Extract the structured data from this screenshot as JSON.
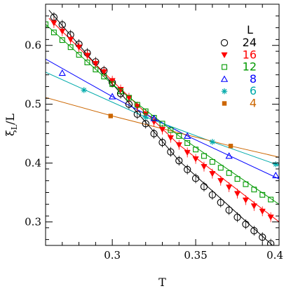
{
  "chart_data": {
    "type": "line",
    "title": "",
    "xlabel": "T",
    "ylabel": "ξL/L",
    "ylabel_main": "ξ",
    "ylabel_sub": "L",
    "ylabel_tail": "/L",
    "xlim": [
      0.26,
      0.4
    ],
    "ylim": [
      0.26,
      0.67
    ],
    "x_ticks": [
      0.3,
      0.35,
      0.4
    ],
    "x_tick_labels": [
      "0.3",
      "0.35",
      "0.4"
    ],
    "y_ticks": [
      0.3,
      0.4,
      0.5,
      0.6
    ],
    "y_tick_labels": [
      "0.3",
      "0.4",
      "0.5",
      "0.6"
    ],
    "grid": false,
    "legend": {
      "title": "L",
      "placement": "top-right"
    },
    "series": [
      {
        "name": "24",
        "color": "#000000",
        "marker": "circle",
        "x": [
          0.265,
          0.27,
          0.275,
          0.28,
          0.285,
          0.29,
          0.295,
          0.3,
          0.305,
          0.31,
          0.315,
          0.32,
          0.325,
          0.33,
          0.335,
          0.34,
          0.345,
          0.35,
          0.355,
          0.36,
          0.365,
          0.37,
          0.375,
          0.38,
          0.385,
          0.39,
          0.395
        ],
        "y": [
          0.648,
          0.635,
          0.618,
          0.602,
          0.587,
          0.572,
          0.557,
          0.537,
          0.518,
          0.5,
          0.483,
          0.467,
          0.45,
          0.435,
          0.419,
          0.404,
          0.389,
          0.374,
          0.36,
          0.346,
          0.333,
          0.32,
          0.308,
          0.296,
          0.285,
          0.274,
          0.263
        ],
        "fit": [
          [
            0.262,
            0.66
          ],
          [
            0.3,
            0.535
          ],
          [
            0.34,
            0.404
          ],
          [
            0.4,
            0.25
          ]
        ]
      },
      {
        "name": "16",
        "color": "#ff0000",
        "marker": "triangle-down-filled",
        "x": [
          0.265,
          0.27,
          0.275,
          0.28,
          0.285,
          0.29,
          0.295,
          0.3,
          0.305,
          0.31,
          0.315,
          0.32,
          0.325,
          0.33,
          0.335,
          0.34,
          0.345,
          0.35,
          0.355,
          0.36,
          0.365,
          0.37,
          0.375,
          0.38,
          0.385,
          0.39,
          0.395
        ],
        "y": [
          0.638,
          0.624,
          0.61,
          0.597,
          0.583,
          0.569,
          0.555,
          0.54,
          0.525,
          0.511,
          0.496,
          0.483,
          0.47,
          0.457,
          0.443,
          0.431,
          0.418,
          0.407,
          0.394,
          0.382,
          0.37,
          0.359,
          0.348,
          0.337,
          0.327,
          0.318,
          0.308
        ],
        "fit": [
          [
            0.262,
            0.646
          ],
          [
            0.3,
            0.54
          ],
          [
            0.34,
            0.431
          ],
          [
            0.4,
            0.3
          ]
        ]
      },
      {
        "name": "12",
        "color": "#009900",
        "marker": "square-open",
        "x": [
          0.26,
          0.265,
          0.27,
          0.275,
          0.28,
          0.285,
          0.29,
          0.295,
          0.3,
          0.305,
          0.31,
          0.315,
          0.32,
          0.325,
          0.33,
          0.335,
          0.34,
          0.345,
          0.35,
          0.355,
          0.36,
          0.365,
          0.37,
          0.375,
          0.38,
          0.385,
          0.39,
          0.395
        ],
        "y": [
          0.636,
          0.622,
          0.609,
          0.597,
          0.584,
          0.571,
          0.559,
          0.547,
          0.534,
          0.522,
          0.511,
          0.499,
          0.488,
          0.477,
          0.467,
          0.456,
          0.446,
          0.434,
          0.423,
          0.412,
          0.402,
          0.392,
          0.383,
          0.373,
          0.364,
          0.355,
          0.346,
          0.338
        ],
        "fit": [
          [
            0.258,
            0.641
          ],
          [
            0.3,
            0.534
          ],
          [
            0.34,
            0.446
          ],
          [
            0.4,
            0.33
          ]
        ]
      },
      {
        "name": "8",
        "color": "#0000ff",
        "marker": "triangle-up-open",
        "x": [
          0.27,
          0.3,
          0.325,
          0.345,
          0.37,
          0.398
        ],
        "y": [
          0.553,
          0.513,
          0.476,
          0.446,
          0.412,
          0.379
        ],
        "fit": [
          [
            0.258,
            0.58
          ],
          [
            0.3,
            0.513
          ],
          [
            0.345,
            0.446
          ],
          [
            0.4,
            0.373
          ]
        ]
      },
      {
        "name": "6",
        "color": "#00aaaa",
        "marker": "asterisk",
        "x": [
          0.283,
          0.32,
          0.36,
          0.398
        ],
        "y": [
          0.524,
          0.478,
          0.436,
          0.398
        ],
        "fit": [
          [
            0.258,
            0.557
          ],
          [
            0.32,
            0.478
          ],
          [
            0.36,
            0.436
          ],
          [
            0.4,
            0.396
          ]
        ]
      },
      {
        "name": "4",
        "color": "#cc6600",
        "marker": "square-filled",
        "x": [
          0.299,
          0.371
        ],
        "y": [
          0.48,
          0.429
        ],
        "fit": [
          [
            0.258,
            0.513
          ],
          [
            0.3,
            0.48
          ],
          [
            0.371,
            0.429
          ],
          [
            0.4,
            0.41
          ]
        ]
      }
    ]
  }
}
